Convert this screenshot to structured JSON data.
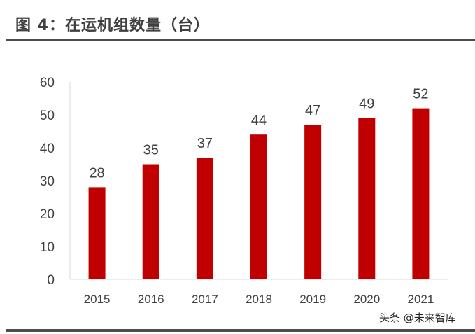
{
  "title": "图 4：在运机组数量（台）",
  "watermark": "头条 @未来智库",
  "chart_data": {
    "type": "bar",
    "title": "图 4：在运机组数量（台）",
    "categories": [
      "2015",
      "2016",
      "2017",
      "2018",
      "2019",
      "2020",
      "2021"
    ],
    "values": [
      28,
      35,
      37,
      44,
      47,
      49,
      52
    ],
    "ylim": [
      0,
      60
    ],
    "yticks": [
      0,
      10,
      20,
      30,
      40,
      50,
      60
    ],
    "xlabel": "",
    "ylabel": "",
    "grid": false,
    "bar_color": "#c00000",
    "data_labels": true
  }
}
